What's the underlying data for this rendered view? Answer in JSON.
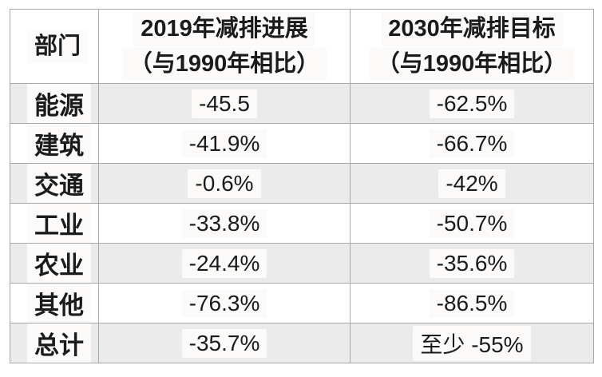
{
  "chart_data": {
    "type": "table",
    "columns": [
      {
        "id": "sector",
        "label": "部门",
        "lines": [
          "部门"
        ]
      },
      {
        "id": "progress_2019",
        "label": "2019年减排进展（与1990年相比）",
        "lines": [
          "2019年减排进展",
          "（与1990年相比）"
        ]
      },
      {
        "id": "target_2030",
        "label": "2030年减排目标（与1990年相比）",
        "lines": [
          "2030年减排目标",
          "（与1990年相比）"
        ]
      }
    ],
    "rows": [
      {
        "sector": "能源",
        "progress_2019": "-45.5",
        "target_2030": "-62.5%"
      },
      {
        "sector": "建筑",
        "progress_2019": "-41.9%",
        "target_2030": "-66.7%"
      },
      {
        "sector": "交通",
        "progress_2019": "-0.6%",
        "target_2030": "-42%"
      },
      {
        "sector": "工业",
        "progress_2019": "-33.8%",
        "target_2030": "-50.7%"
      },
      {
        "sector": "农业",
        "progress_2019": "-24.4%",
        "target_2030": "-35.6%"
      },
      {
        "sector": "其他",
        "progress_2019": "-76.3%",
        "target_2030": "-86.5%"
      },
      {
        "sector": "总计",
        "progress_2019": "-35.7%",
        "target_2030": "至少 -55%"
      }
    ],
    "layout_hints": {
      "striped_rows": "odd data rows shaded",
      "header_rows": 1
    }
  },
  "colors": {
    "stripe_row_bg": "#ebebeb",
    "plain_row_bg": "#ffffff",
    "border": "#a8a8a8",
    "text": "#1b1b1b",
    "text_highlight_bg": "#fbfaf8"
  }
}
